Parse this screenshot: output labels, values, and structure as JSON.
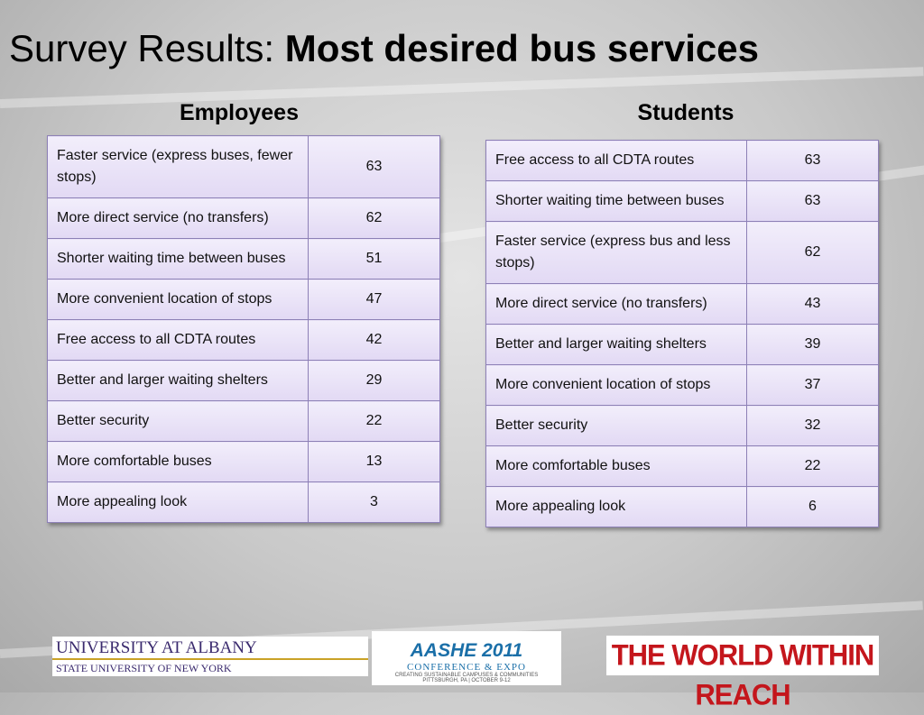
{
  "title": {
    "normal": "Survey Results:",
    "bold": "Most desired bus services"
  },
  "employees": {
    "heading": "Employees",
    "rows": [
      [
        "Faster service (express buses, fewer stops)",
        63
      ],
      [
        "More direct service (no transfers)",
        62
      ],
      [
        "Shorter waiting time between buses",
        51
      ],
      [
        "More convenient location of stops",
        47
      ],
      [
        "Free access to all CDTA routes",
        42
      ],
      [
        "Better and larger waiting shelters",
        29
      ],
      [
        "Better security",
        22
      ],
      [
        "More comfortable buses",
        13
      ],
      [
        "More appealing look",
        3
      ]
    ]
  },
  "students": {
    "heading": "Students",
    "rows": [
      [
        "Free access to all CDTA routes",
        63
      ],
      [
        "Shorter waiting time between buses",
        63
      ],
      [
        "Faster service (express bus and less stops)",
        62
      ],
      [
        "More direct service (no transfers)",
        43
      ],
      [
        "Better and larger waiting shelters",
        39
      ],
      [
        "More convenient location of stops",
        37
      ],
      [
        "Better security",
        32
      ],
      [
        "More comfortable buses",
        22
      ],
      [
        "More appealing look",
        6
      ]
    ]
  },
  "footer": {
    "albany": {
      "line1": "UNIVERSITY AT ALBANY",
      "line2": "STATE UNIVERSITY OF NEW YORK"
    },
    "aashe": {
      "name": "AASHE 2011",
      "line1": "CONFERENCE & EXPO",
      "line2": "CREATING SUSTAINABLE CAMPUSES & COMMUNITIES",
      "line3": "PITTSBURGH, PA | OCTOBER 9-12"
    },
    "slogan": "THE WORLD WITHIN REACH"
  }
}
